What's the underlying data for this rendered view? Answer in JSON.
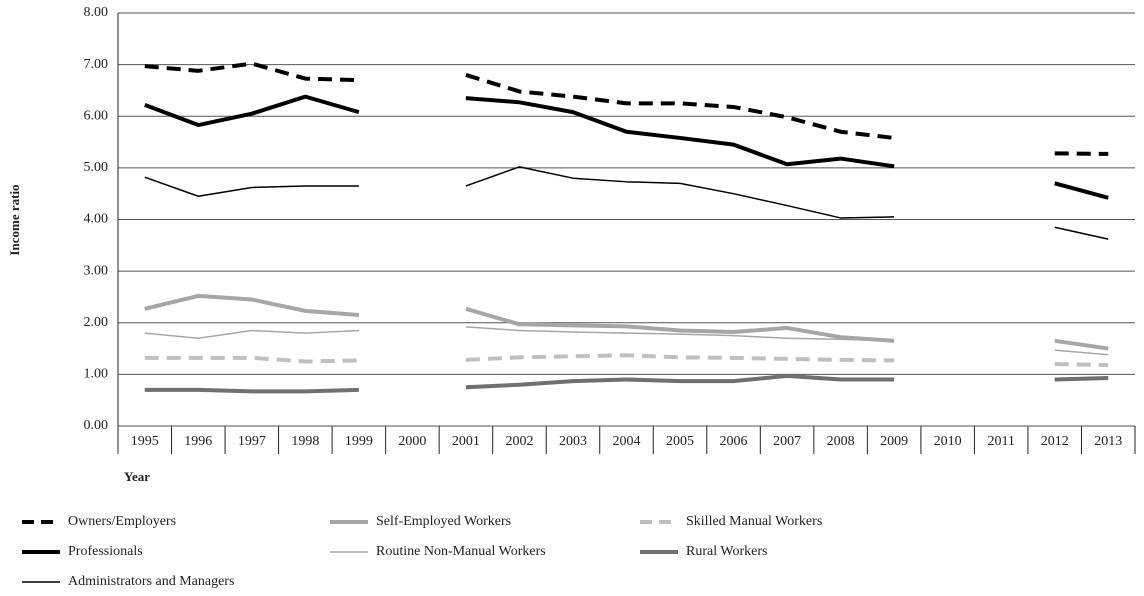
{
  "chart_data": {
    "type": "line",
    "y_label": "Income ratio",
    "x_label": "Year",
    "categories": [
      "1995",
      "1996",
      "1997",
      "1998",
      "1999",
      "2000",
      "2001",
      "2002",
      "2003",
      "2004",
      "2005",
      "2006",
      "2007",
      "2008",
      "2009",
      "2010",
      "2011",
      "2012",
      "2013"
    ],
    "ylim": [
      0,
      8
    ],
    "yticks": [
      {
        "value": 0,
        "label": "0.00"
      },
      {
        "value": 1,
        "label": "1.00"
      },
      {
        "value": 2,
        "label": "2.00"
      },
      {
        "value": 3,
        "label": "3.00"
      },
      {
        "value": 4,
        "label": "4.00"
      },
      {
        "value": 5,
        "label": "5.00"
      },
      {
        "value": 6,
        "label": "6.00"
      },
      {
        "value": 7,
        "label": "7.00"
      },
      {
        "value": 8,
        "label": "8.00"
      }
    ],
    "grid": true,
    "legend": "bottom",
    "series": [
      {
        "name": "Owners/Employers",
        "color": "#000000",
        "line_width": 4,
        "dashed": true,
        "values": [
          6.97,
          6.88,
          7.02,
          6.73,
          6.7,
          null,
          6.8,
          6.48,
          6.38,
          6.25,
          6.25,
          6.18,
          5.98,
          5.7,
          5.58,
          null,
          null,
          5.28,
          5.27
        ]
      },
      {
        "name": "Self-Employed Workers",
        "color": "#a6a6a6",
        "line_width": 4,
        "dashed": false,
        "values": [
          2.27,
          2.52,
          2.45,
          2.23,
          2.15,
          null,
          2.27,
          1.97,
          1.95,
          1.93,
          1.85,
          1.82,
          1.9,
          1.72,
          1.65,
          null,
          null,
          1.65,
          1.5
        ]
      },
      {
        "name": "Skilled Manual Workers",
        "color": "#bfbfbf",
        "line_width": 4,
        "dashed": true,
        "values": [
          1.32,
          1.32,
          1.32,
          1.25,
          1.27,
          null,
          1.28,
          1.33,
          1.35,
          1.37,
          1.33,
          1.32,
          1.3,
          1.28,
          1.27,
          null,
          null,
          1.2,
          1.18
        ]
      },
      {
        "name": "Professionals",
        "color": "#000000",
        "line_width": 4,
        "dashed": false,
        "values": [
          6.22,
          5.83,
          6.05,
          6.38,
          6.08,
          null,
          6.35,
          6.27,
          6.08,
          5.7,
          5.58,
          5.45,
          5.07,
          5.18,
          5.03,
          null,
          null,
          4.7,
          4.42
        ]
      },
      {
        "name": "Routine Non-Manual Workers",
        "color": "#a6a6a6",
        "line_width": 1.5,
        "dashed": false,
        "values": [
          1.8,
          1.7,
          1.85,
          1.8,
          1.85,
          null,
          1.92,
          1.85,
          1.82,
          1.8,
          1.78,
          1.75,
          1.7,
          1.68,
          1.65,
          null,
          null,
          1.47,
          1.38
        ]
      },
      {
        "name": "Rural Workers",
        "color": "#707070",
        "line_width": 4,
        "dashed": false,
        "values": [
          0.7,
          0.7,
          0.67,
          0.67,
          0.7,
          null,
          0.75,
          0.8,
          0.87,
          0.9,
          0.87,
          0.87,
          0.97,
          0.9,
          0.9,
          null,
          null,
          0.9,
          0.93
        ]
      },
      {
        "name": "Administrators and Managers",
        "color": "#000000",
        "line_width": 1.5,
        "dashed": false,
        "values": [
          4.82,
          4.45,
          4.62,
          4.65,
          4.65,
          null,
          4.65,
          5.02,
          4.8,
          4.73,
          4.7,
          4.5,
          4.27,
          4.03,
          4.05,
          null,
          null,
          3.85,
          3.62
        ]
      }
    ]
  }
}
